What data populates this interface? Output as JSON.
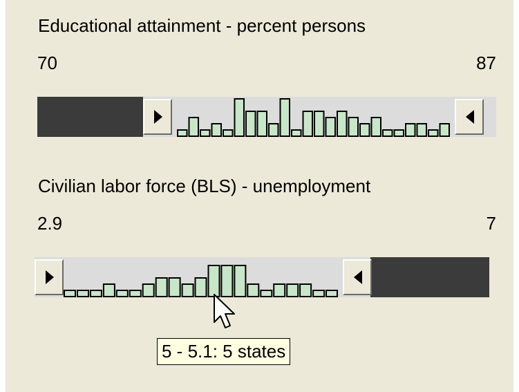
{
  "panel": {
    "background": "#ece9d8",
    "filter_color": "#3b3b3b",
    "bar_color": "#c8e6c8"
  },
  "sliders": [
    {
      "title": "Educational attainment - percent persons",
      "min_label": "70",
      "max_label": "87",
      "range": [
        70,
        87
      ],
      "selected_range": [
        74.5,
        87
      ],
      "histogram_counts": [
        1,
        3,
        1,
        2,
        1,
        6,
        4,
        4,
        2,
        6,
        1,
        4,
        4,
        3,
        4,
        3,
        2,
        3,
        1,
        1,
        2,
        2,
        1,
        2
      ]
    },
    {
      "title": "Civilian labor force (BLS) - unemployment",
      "min_label": "2.9",
      "max_label": "7",
      "range": [
        2.9,
        7
      ],
      "selected_range": [
        2.9,
        6.1
      ],
      "histogram_counts": [
        1,
        1,
        1,
        2,
        1,
        1,
        2,
        3,
        3,
        2,
        3,
        5,
        5,
        5,
        2,
        1,
        2,
        2,
        2,
        1,
        1
      ]
    }
  ],
  "tooltip": {
    "text": "5 - 5.1: 5 states"
  },
  "cursor": {
    "icon": "arrow-cursor-icon"
  }
}
